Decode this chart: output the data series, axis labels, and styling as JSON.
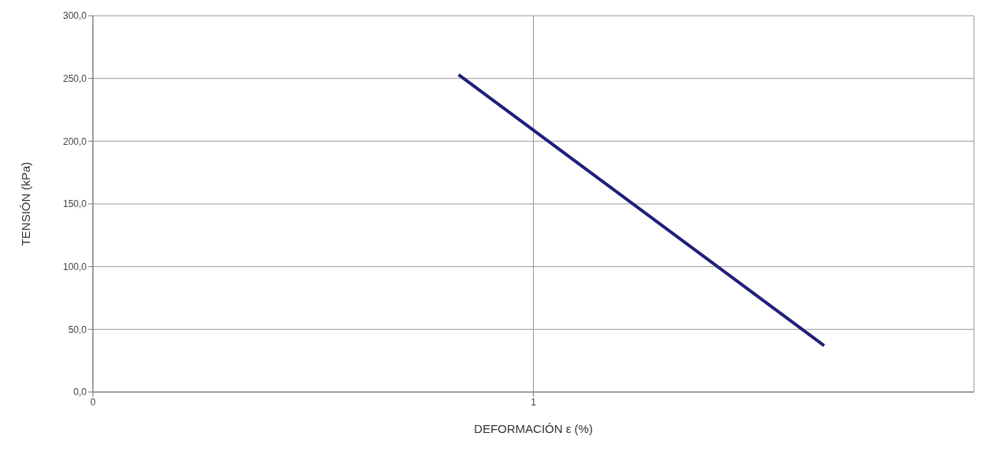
{
  "chart_data": {
    "type": "line",
    "xlabel": "DEFORMACIÓN ε (%)",
    "ylabel": "TENSIÓN (kPa)",
    "series": [
      {
        "color": "#1f1f7a",
        "x": [
          0.83,
          1.66
        ],
        "values": [
          253,
          37
        ]
      }
    ],
    "xlim": [
      0,
      2
    ],
    "xticks": [
      {
        "value": 0,
        "label": "0"
      },
      {
        "value": 1,
        "label": "1"
      }
    ],
    "ylim": [
      0,
      300
    ],
    "yticks": [
      {
        "value": 0,
        "label": "0,0"
      },
      {
        "value": 50,
        "label": "50,0"
      },
      {
        "value": 100,
        "label": "100,0"
      },
      {
        "value": 150,
        "label": "150,0"
      },
      {
        "value": 200,
        "label": "200,0"
      },
      {
        "value": 250,
        "label": "250,0"
      },
      {
        "value": 300,
        "label": "300,0"
      }
    ],
    "grid": true,
    "marker": "none",
    "line_style": "solid",
    "legend": false
  }
}
